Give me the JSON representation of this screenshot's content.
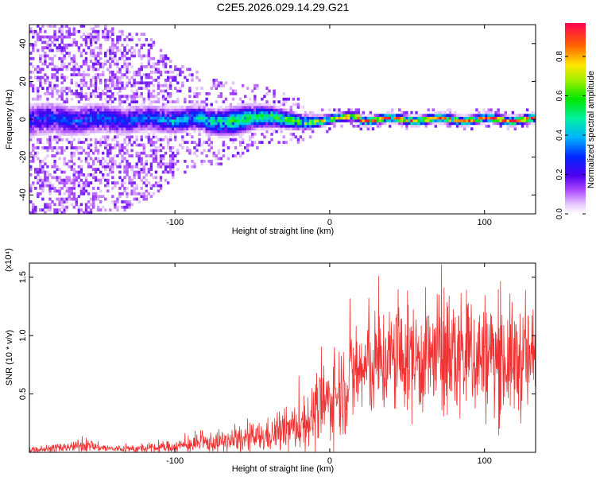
{
  "title": "C2E5.2026.029.14.29.G21",
  "chart_data": [
    {
      "type": "heatmap",
      "name": "spectrogram",
      "xlabel": "Height of straight line (km)",
      "ylabel": "Frequency (Hz)",
      "xlim": [
        -194,
        133
      ],
      "ylim": [
        -50,
        50
      ],
      "xticks": [
        -100,
        0,
        100
      ],
      "yticks": [
        -40,
        -20,
        0,
        20,
        40
      ],
      "colorbar": {
        "label": "Normalized spectral amplitude",
        "range": [
          0.0,
          0.97
        ],
        "ticks": [
          0.0,
          0.2,
          0.4,
          0.6,
          0.8
        ]
      },
      "profile": {
        "x": [
          -194,
          -150,
          -120,
          -100,
          -80,
          -60,
          -40,
          -20,
          -10,
          0,
          20,
          40,
          60,
          80,
          100,
          120,
          133
        ],
        "band_halfwidth_hz": [
          10,
          9,
          8,
          8,
          8,
          9,
          7,
          5,
          4,
          3,
          3,
          3,
          3,
          3,
          3,
          3,
          3
        ],
        "peak_amplitude": [
          0.12,
          0.15,
          0.18,
          0.26,
          0.32,
          0.42,
          0.45,
          0.55,
          0.6,
          0.75,
          0.8,
          0.85,
          0.87,
          0.88,
          0.9,
          0.88,
          0.86
        ],
        "scatter_extent_hz": [
          50,
          50,
          45,
          30,
          25,
          20,
          15,
          12,
          8,
          6,
          5,
          5,
          5,
          5,
          5,
          5,
          5
        ]
      }
    },
    {
      "type": "line",
      "name": "snr",
      "xlabel": "Height of straight line (km)",
      "ylabel": "SNR (10 * v/v)",
      "scale_label": "(x10⁴)",
      "color": "#f03232",
      "xlim": [
        -194,
        133
      ],
      "ylim": [
        0,
        1.62
      ],
      "xticks": [
        -100,
        0,
        100
      ],
      "yticks": [
        0.5,
        1.0,
        1.5
      ],
      "envelope": {
        "x": [
          -194,
          -170,
          -160,
          -140,
          -120,
          -100,
          -80,
          -60,
          -40,
          -20,
          -10,
          0,
          10,
          20,
          40,
          60,
          80,
          100,
          120,
          133
        ],
        "mean": [
          0.02,
          0.04,
          0.06,
          0.03,
          0.03,
          0.05,
          0.08,
          0.1,
          0.14,
          0.22,
          0.32,
          0.45,
          0.58,
          0.7,
          0.8,
          0.8,
          0.82,
          0.82,
          0.78,
          0.8
        ],
        "spread": [
          0.02,
          0.03,
          0.04,
          0.02,
          0.03,
          0.04,
          0.06,
          0.08,
          0.1,
          0.15,
          0.2,
          0.25,
          0.3,
          0.32,
          0.35,
          0.35,
          0.4,
          0.38,
          0.35,
          0.33
        ],
        "peak": 1.61
      }
    }
  ]
}
